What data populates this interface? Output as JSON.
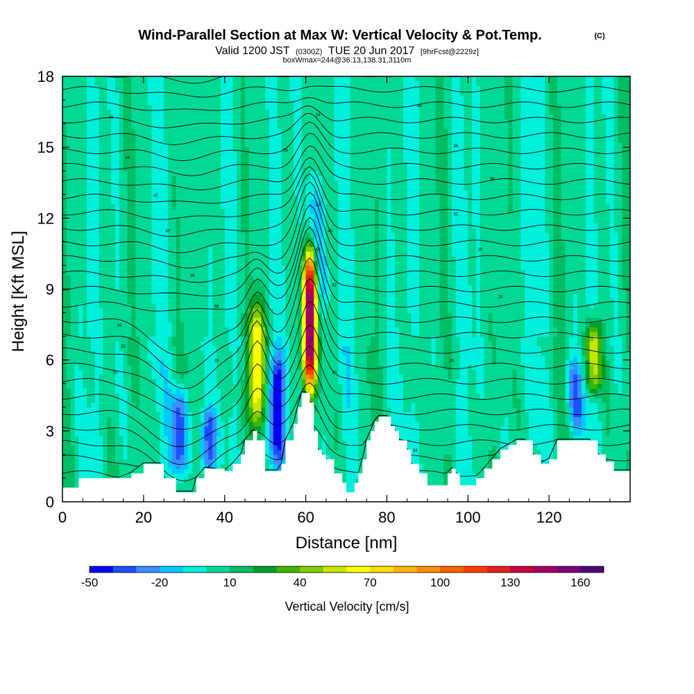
{
  "chart_data": {
    "type": "heatmap",
    "title": "Wind-Parallel Section at Max W: Vertical Velocity & Pot.Temp.",
    "title_mark": "(C)",
    "subtitle": {
      "prefix": "Valid 1200 JST",
      "utc": "(0300Z)",
      "date": "TUE 20 Jun 2017",
      "forecast": "[9hrFcst@2229z]"
    },
    "subtitle2": "boxWmax=244@36.13,138.31,3110m",
    "xlabel": "Distance [nm]",
    "ylabel": "Height [Kft MSL]",
    "xlim": [
      0,
      140
    ],
    "ylim": [
      0,
      18
    ],
    "x_ticks": [
      "0",
      "20",
      "40",
      "60",
      "80",
      "100",
      "120"
    ],
    "y_ticks": [
      "0",
      "3",
      "6",
      "9",
      "12",
      "15",
      "18"
    ],
    "colorbar": {
      "label": "Vertical Velocity [cm/s]",
      "tick_labels": [
        "-50",
        "-20",
        "10",
        "40",
        "70",
        "100",
        "130",
        "160"
      ],
      "colors": [
        "#0000ff",
        "#1e50ff",
        "#3c8cff",
        "#00c8ff",
        "#00f0dc",
        "#00d896",
        "#00be64",
        "#00a028",
        "#40b400",
        "#80cc00",
        "#c8e600",
        "#ffff00",
        "#ffdc00",
        "#ffb400",
        "#ff8c00",
        "#ff6400",
        "#ff3c00",
        "#e61e1e",
        "#c8003c",
        "#a00064",
        "#780078",
        "#500078"
      ],
      "bounds": [
        -50,
        -40,
        -30,
        -20,
        -10,
        0,
        10,
        20,
        30,
        40,
        50,
        60,
        70,
        80,
        90,
        100,
        110,
        120,
        130,
        140,
        150,
        160,
        170
      ]
    },
    "terrain_profile": {
      "x": [
        0,
        3,
        4,
        10,
        14,
        17,
        20,
        24,
        25,
        28,
        29,
        32,
        33,
        35,
        36,
        40,
        42,
        44,
        45,
        47,
        48,
        50,
        53,
        54,
        55,
        57,
        58,
        59,
        60,
        61,
        62,
        63,
        64,
        65,
        67,
        69,
        70,
        71,
        72,
        73,
        74,
        75,
        76,
        77,
        78,
        79,
        80,
        81,
        82,
        83,
        85,
        86,
        88,
        90,
        92,
        94,
        95,
        96,
        97,
        98,
        99,
        100,
        102,
        104,
        106,
        108,
        110,
        112,
        114,
        116,
        118,
        120,
        122,
        124,
        126,
        128,
        130,
        132,
        134,
        136,
        138,
        140
      ],
      "height_kft": [
        0.6,
        0.6,
        1.0,
        1.0,
        1.0,
        1.2,
        1.6,
        1.6,
        1.0,
        0.4,
        0.4,
        0.4,
        1.0,
        1.4,
        1.4,
        1.3,
        1.6,
        2.0,
        2.6,
        3.0,
        2.6,
        1.3,
        1.3,
        1.6,
        2.6,
        3.3,
        4.0,
        4.6,
        4.6,
        4.2,
        3.0,
        2.2,
        2.0,
        1.8,
        1.2,
        0.8,
        0.4,
        0.4,
        0.8,
        1.2,
        1.8,
        2.6,
        3.0,
        3.4,
        3.6,
        3.6,
        3.6,
        3.2,
        3.0,
        2.6,
        2.2,
        1.6,
        1.2,
        0.7,
        0.7,
        0.7,
        1.2,
        1.4,
        1.2,
        0.7,
        0.7,
        0.7,
        1.0,
        1.4,
        1.8,
        2.2,
        2.4,
        2.6,
        2.6,
        2.0,
        1.6,
        1.8,
        2.6,
        2.6,
        2.6,
        2.6,
        2.6,
        2.0,
        1.7,
        1.3,
        1.3,
        1.3
      ]
    },
    "vertical_velocity_features": [
      {
        "x": 61,
        "z_bottom": 4.5,
        "z_top": 10.8,
        "max_cm_s": 160
      },
      {
        "x": 48,
        "z_bottom": 3.0,
        "z_top": 8.6,
        "max_cm_s": 70
      },
      {
        "x": 131,
        "z_bottom": 4.5,
        "z_top": 7.8,
        "max_cm_s": 60
      },
      {
        "x": 29,
        "z_bottom": 1.0,
        "z_top": 5.0,
        "max_cm_s": -40
      },
      {
        "x": 53,
        "z_bottom": 1.5,
        "z_top": 6.5,
        "max_cm_s": -40
      },
      {
        "x": 64,
        "z_bottom": 8.0,
        "z_top": 14.0,
        "max_cm_s": -20
      },
      {
        "x": 127,
        "z_bottom": 2.8,
        "z_top": 6.0,
        "max_cm_s": -30
      },
      {
        "x": 36,
        "z_bottom": 1.2,
        "z_top": 4.0,
        "max_cm_s": -30
      }
    ],
    "theta_contour_labels": [
      "46",
      "44",
      "42",
      "40",
      "38",
      "36",
      "34",
      "32",
      "30",
      "28",
      "26",
      "24",
      "22"
    ]
  }
}
